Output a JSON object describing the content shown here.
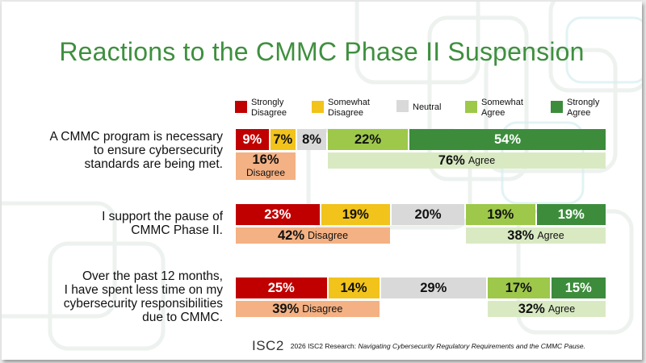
{
  "slide": {
    "title": "Reactions to the CMMC Phase II Suspension",
    "footer_logo": "ISC2",
    "footer_prefix": "2026 ISC2 Research: ",
    "footer_italic": "Navigating Cybersecurity Regulatory Requirements and the CMMC Pause."
  },
  "chart_data": {
    "type": "bar",
    "orientation": "horizontal-stacked",
    "legend_position": "top",
    "categories": [
      "A CMMC program is necessary to ensure cybersecurity standards are being met.",
      "I support the pause of CMMC Phase II.",
      "Over the past 12 months, I have spent less time on my cybersecurity responsibilities due to CMMC."
    ],
    "questions": [
      [
        "A CMMC program is necessary",
        "to ensure cybersecurity",
        "standards are being met."
      ],
      [
        "I support the pause of",
        "CMMC Phase II."
      ],
      [
        "Over the past 12 months,",
        "I have spent less time on my",
        "cybersecurity responsibilities",
        "due to CMMC."
      ]
    ],
    "series": [
      {
        "name": "Strongly Disagree",
        "legend_lines": [
          "Strongly",
          "Disagree"
        ],
        "color": "#c00000",
        "text_color": "#ffffff",
        "values": [
          9,
          23,
          25
        ]
      },
      {
        "name": "Somewhat Disagree",
        "legend_lines": [
          "Somewhat",
          "Disagree"
        ],
        "color": "#f2c31b",
        "text_color": "#111111",
        "values": [
          7,
          19,
          14
        ]
      },
      {
        "name": "Neutral",
        "legend_lines": [
          "Neutral"
        ],
        "color": "#d9d9d9",
        "text_color": "#111111",
        "values": [
          8,
          20,
          29
        ]
      },
      {
        "name": "Somewhat Agree",
        "legend_lines": [
          "Somewhat",
          "Agree"
        ],
        "color": "#9dc84a",
        "text_color": "#111111",
        "values": [
          22,
          19,
          17
        ]
      },
      {
        "name": "Strongly Agree",
        "legend_lines": [
          "Strongly",
          "Agree"
        ],
        "color": "#3c8c3c",
        "text_color": "#ffffff",
        "values": [
          54,
          19,
          15
        ]
      }
    ],
    "value_suffix": "%",
    "disagree_totals": {
      "values": [
        16,
        42,
        39
      ],
      "label": "Disagree",
      "color": "#f4b183"
    },
    "agree_totals": {
      "values": [
        76,
        38,
        32
      ],
      "label": "Agree",
      "color": "#d9eac3"
    }
  }
}
